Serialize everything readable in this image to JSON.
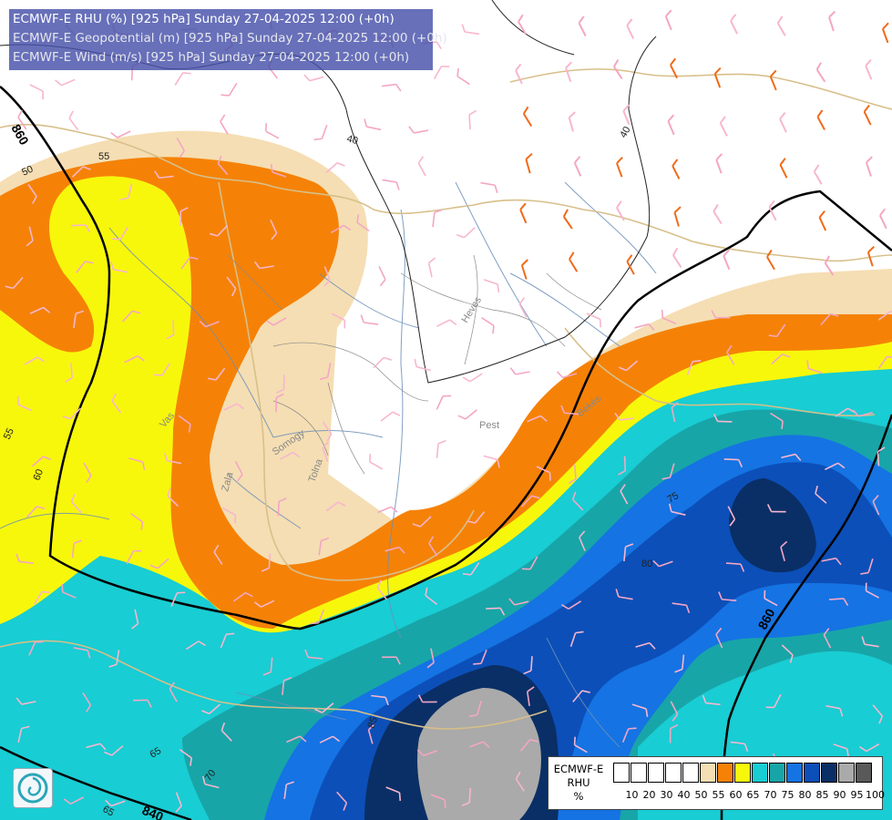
{
  "header": {
    "line1": "ECMWF-E RHU (%) [925 hPa] Sunday 27-04-2025 12:00 (+0h)",
    "line2": "ECMWF-E Geopotential (m) [925 hPa] Sunday 27-04-2025 12:00 (+0h)",
    "line3": "ECMWF-E Wind (m/s) [925 hPa] Sunday 27-04-2025 12:00 (+0h)"
  },
  "legend": {
    "title_line1": "ECMWF-E",
    "title_line2": "RHU",
    "title_line3": "%",
    "colors": [
      "#ffffff",
      "#ffffff",
      "#ffffff",
      "#ffffff",
      "#ffffff",
      "#f5deb3",
      "#f58207",
      "#f7f70c",
      "#18cdd3",
      "#18a5a8",
      "#1573e3",
      "#0c4fb8",
      "#0a2f66",
      "#aaaaaa",
      "#595959"
    ],
    "labels": [
      "10",
      "20",
      "30",
      "40",
      "50",
      "55",
      "60",
      "65",
      "70",
      "75",
      "80",
      "85",
      "90",
      "95",
      "100"
    ]
  },
  "contour_labels": {
    "c860a": "860",
    "c860b": "860",
    "c840": "840",
    "g40a": "40",
    "g40b": "40",
    "r50": "50",
    "r55a": "55",
    "r55b": "55",
    "r60": "60",
    "r65a": "65",
    "r65b": "65",
    "r70": "70",
    "r75": "75",
    "r80": "80",
    "r85": "85"
  },
  "places": {
    "p_heves": "Heves",
    "p_pest": "Pest",
    "p_bekes": "Békés",
    "p_vas": "Vas",
    "p_zala": "Zala",
    "p_somogy": "Somogy",
    "p_tolna": "Tolna"
  },
  "logo": "ecmwf-logo"
}
